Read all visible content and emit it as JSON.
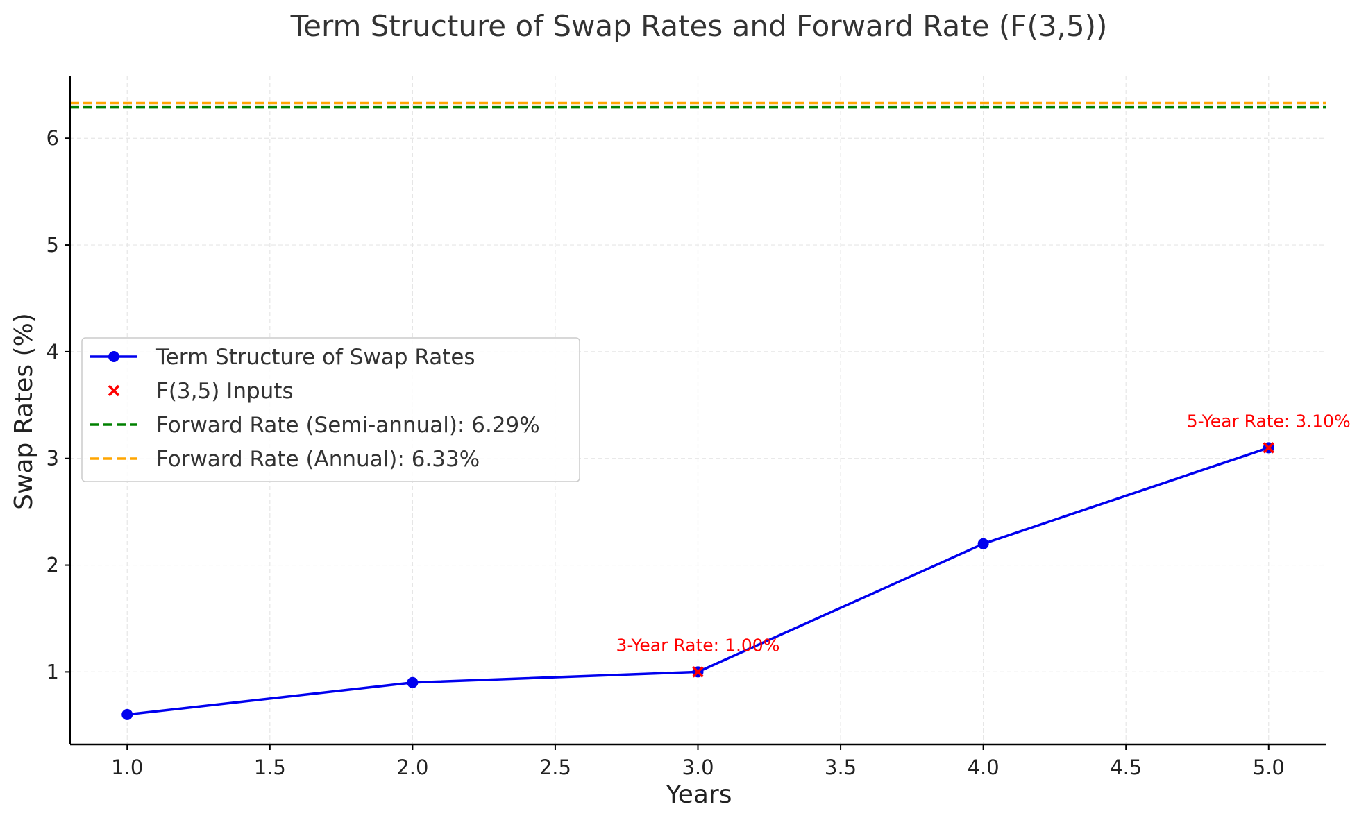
{
  "chart_data": {
    "type": "line",
    "title": "Term Structure of Swap Rates and Forward Rate (F(3,5))",
    "xlabel": "Years",
    "ylabel": "Swap Rates (%)",
    "xlim": [
      0.8,
      5.2
    ],
    "ylim": [
      0.32,
      6.58
    ],
    "grid": true,
    "legend_position": "center-left",
    "x_ticks": [
      "1.0",
      "1.5",
      "2.0",
      "2.5",
      "3.0",
      "3.5",
      "4.0",
      "4.5",
      "5.0"
    ],
    "x_tick_values": [
      1.0,
      1.5,
      2.0,
      2.5,
      3.0,
      3.5,
      4.0,
      4.5,
      5.0
    ],
    "y_ticks": [
      "1",
      "2",
      "3",
      "4",
      "5",
      "6"
    ],
    "y_tick_values": [
      1,
      2,
      3,
      4,
      5,
      6
    ],
    "series": [
      {
        "name": "Term Structure of Swap Rates",
        "kind": "line-marker",
        "color": "#0000ee",
        "x": [
          1,
          2,
          3,
          4,
          5
        ],
        "y": [
          0.6,
          0.9,
          1.0,
          2.2,
          3.1
        ]
      },
      {
        "name": "F(3,5) Inputs",
        "kind": "x-marker",
        "color": "#ff0000",
        "x": [
          3,
          5
        ],
        "y": [
          1.0,
          3.1
        ]
      },
      {
        "name": "Forward Rate (Semi-annual): 6.29%",
        "kind": "hline",
        "color": "#008000",
        "y": 6.29
      },
      {
        "name": "Forward Rate (Annual): 6.33%",
        "kind": "hline",
        "color": "#ffa500",
        "y": 6.33
      }
    ],
    "annotations": [
      {
        "text": "3-Year Rate: 1.00%",
        "x": 3,
        "y": 1.0,
        "color": "#ff0000"
      },
      {
        "text": "5-Year Rate: 3.10%",
        "x": 5,
        "y": 3.1,
        "color": "#ff0000"
      }
    ]
  }
}
